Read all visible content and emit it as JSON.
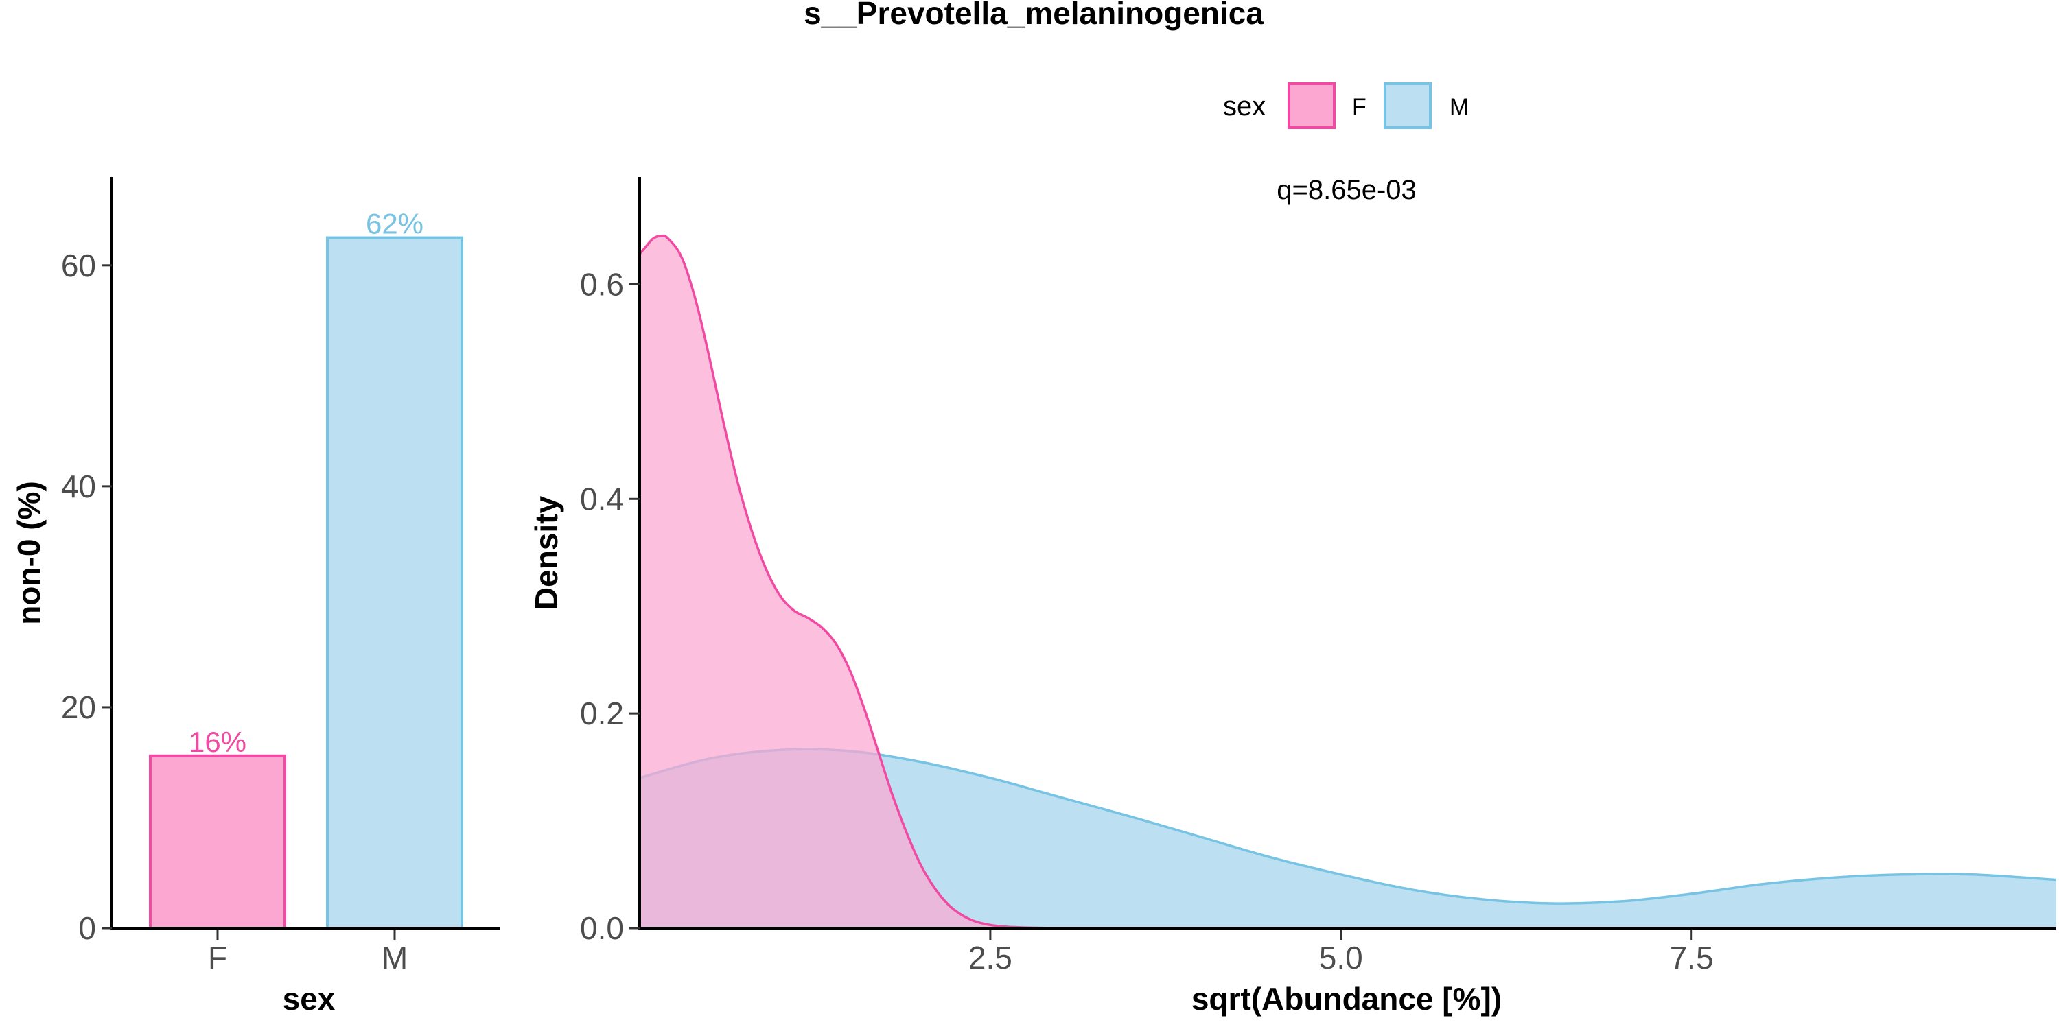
{
  "title": "s__Prevotella_melaninogenica",
  "colors": {
    "F_fill": "#FBA7D1",
    "F_line": "#F14AA2",
    "M_fill": "#BCE0F1",
    "M_line": "#77C3E3",
    "overlap_fill": "#B6B5DC"
  },
  "legend": {
    "title": "sex",
    "items": [
      {
        "label": "F",
        "key": "F"
      },
      {
        "label": "M",
        "key": "M"
      }
    ]
  },
  "chart_data": [
    {
      "type": "bar",
      "title": "",
      "xlabel": "sex",
      "ylabel": "non-0 (%)",
      "categories": [
        "F",
        "M"
      ],
      "values": [
        15.6,
        62.5
      ],
      "labels": [
        "16%",
        "62%"
      ],
      "ylim": [
        0,
        68
      ],
      "yticks": [
        0,
        20,
        40,
        60
      ],
      "ytick_labels": [
        "0",
        "20",
        "40",
        "60"
      ],
      "grid": false
    },
    {
      "type": "area",
      "title": "",
      "xlabel": "sqrt(Abundance [%])",
      "ylabel": "Density",
      "annotation": "q=8.65e-03",
      "xlim": [
        0,
        10.1
      ],
      "ylim": [
        0,
        0.7
      ],
      "xticks": [
        2.5,
        5.0,
        7.5
      ],
      "xtick_labels": [
        "2.5",
        "5.0",
        "7.5"
      ],
      "yticks": [
        0.0,
        0.2,
        0.4,
        0.6
      ],
      "ytick_labels": [
        "0.0",
        "0.2",
        "0.4",
        "0.6"
      ],
      "grid": false,
      "series": [
        {
          "name": "F",
          "x": [
            0,
            0.05,
            0.1,
            0.15,
            0.2,
            0.3,
            0.4,
            0.5,
            0.6,
            0.7,
            0.8,
            0.9,
            1.0,
            1.1,
            1.2,
            1.3,
            1.4,
            1.5,
            1.6,
            1.7,
            1.8,
            1.9,
            2.0,
            2.1,
            2.2,
            2.3,
            2.4,
            2.5,
            2.6,
            2.7,
            2.8,
            2.9,
            3.0,
            3.2,
            10.1
          ],
          "y": [
            0.628,
            0.636,
            0.643,
            0.645,
            0.643,
            0.625,
            0.585,
            0.53,
            0.47,
            0.415,
            0.37,
            0.335,
            0.31,
            0.296,
            0.289,
            0.28,
            0.265,
            0.24,
            0.205,
            0.165,
            0.125,
            0.09,
            0.06,
            0.038,
            0.022,
            0.012,
            0.006,
            0.003,
            0.0015,
            0.0008,
            0.0004,
            0.0002,
            0.0001,
            0.0,
            0.0
          ]
        },
        {
          "name": "M",
          "x": [
            0,
            0.5,
            1.0,
            1.5,
            2.0,
            2.5,
            3.0,
            3.5,
            4.0,
            4.5,
            5.0,
            5.5,
            6.0,
            6.5,
            7.0,
            7.5,
            8.0,
            8.5,
            9.0,
            9.5,
            10.1
          ],
          "y": [
            0.14,
            0.158,
            0.166,
            0.165,
            0.155,
            0.14,
            0.122,
            0.104,
            0.085,
            0.066,
            0.05,
            0.036,
            0.027,
            0.023,
            0.025,
            0.032,
            0.041,
            0.047,
            0.05,
            0.05,
            0.045
          ]
        }
      ]
    }
  ]
}
